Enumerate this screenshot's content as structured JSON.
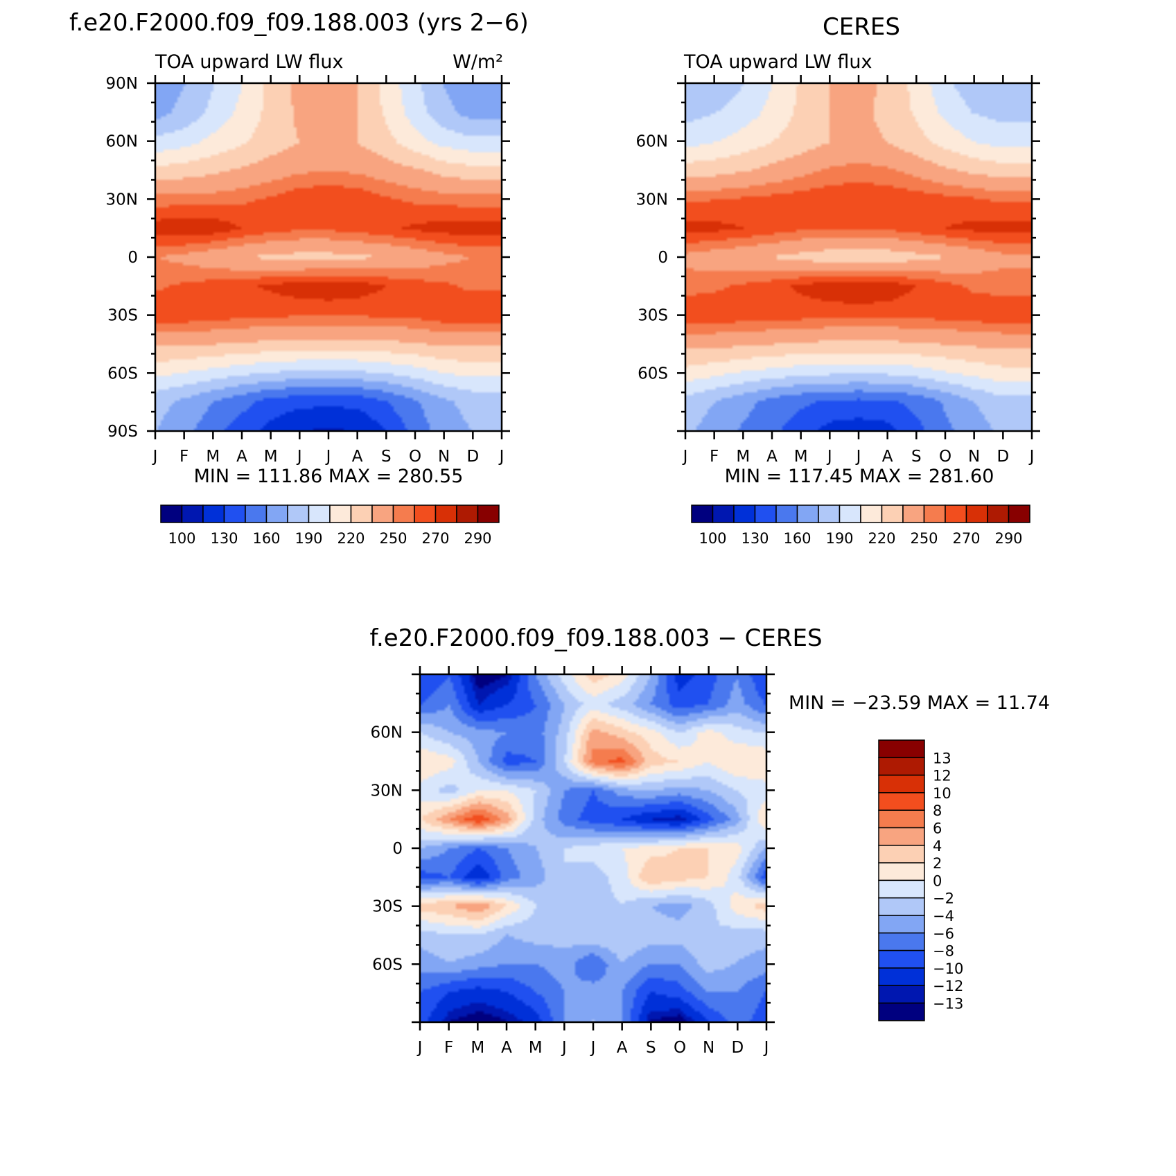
{
  "colors": {
    "fill_scale": [
      "#00007f",
      "#0017b0",
      "#0030d8",
      "#2050f0",
      "#4a78ee",
      "#82a6f4",
      "#b0c8f8",
      "#d8e6fc",
      "#fdeada",
      "#fcd0b4",
      "#f8a480",
      "#f57c4e",
      "#f24e1e",
      "#d83006",
      "#ae1a02",
      "#880000"
    ],
    "diff_scale": [
      "#00007f",
      "#0017b0",
      "#0030d8",
      "#2050f0",
      "#4a78ee",
      "#82a6f4",
      "#b0c8f8",
      "#d8e6fc",
      "#fdeada",
      "#fcd0b4",
      "#f8a480",
      "#f57c4e",
      "#f24e1e",
      "#d83006",
      "#ae1a02",
      "#880000"
    ]
  },
  "panels": {
    "model": {
      "title": "f.e20.F2000.f09_f09.188.003 (yrs 2−6)",
      "left_label": "TOA upward LW flux",
      "right_label": "W/m²",
      "stats": "MIN = 111.86 MAX = 280.55",
      "yticks": [
        "90N",
        "60N",
        "30N",
        "0",
        "30S",
        "60S",
        "90S"
      ]
    },
    "obs": {
      "title": "CERES",
      "left_label": "TOA upward LW flux",
      "stats": "MIN = 117.45 MAX = 281.60",
      "yticks": [
        "60N",
        "30N",
        "0",
        "30S",
        "60S"
      ]
    },
    "diff": {
      "title": "f.e20.F2000.f09_f09.188.003 − CERES",
      "stats": "MIN = −23.59 MAX =   11.74",
      "yticks": [
        "60N",
        "30N",
        "0",
        "30S",
        "60S"
      ]
    }
  },
  "months": [
    "J",
    "F",
    "M",
    "A",
    "M",
    "J",
    "J",
    "A",
    "S",
    "O",
    "N",
    "D",
    "J"
  ],
  "colorbar_top_labels": [
    "100",
    "130",
    "160",
    "190",
    "220",
    "250",
    "270",
    "290"
  ],
  "colorbar_diff_labels": [
    "13",
    "12",
    "10",
    "8",
    "6",
    "4",
    "2",
    "0",
    "−2",
    "−4",
    "−6",
    "−8",
    "−10",
    "−12",
    "−13"
  ],
  "chart_data": [
    {
      "type": "heatmap",
      "title": "f.e20.F2000.f09_f09.188.003 (yrs 2−6)",
      "subtitle": "TOA upward LW flux",
      "units": "W/m²",
      "x": [
        "J",
        "F",
        "M",
        "A",
        "M",
        "J",
        "J",
        "A",
        "S",
        "O",
        "N",
        "D",
        "J"
      ],
      "y": [
        90,
        75,
        60,
        45,
        30,
        15,
        0,
        -15,
        -30,
        -45,
        -60,
        -75,
        -90
      ],
      "ylim": [
        -90,
        90
      ],
      "levels": [
        100,
        115,
        130,
        145,
        160,
        175,
        190,
        205,
        220,
        235,
        250,
        260,
        270,
        280,
        290
      ],
      "values": [
        [
          165,
          175,
          190,
          205,
          225,
          240,
          245,
          235,
          215,
          195,
          175,
          165,
          165
        ],
        [
          170,
          180,
          195,
          210,
          225,
          238,
          243,
          235,
          218,
          198,
          180,
          170,
          170
        ],
        [
          195,
          200,
          210,
          218,
          228,
          235,
          240,
          235,
          225,
          212,
          200,
          195,
          195
        ],
        [
          225,
          228,
          232,
          238,
          243,
          248,
          250,
          248,
          243,
          238,
          230,
          226,
          225
        ],
        [
          255,
          255,
          256,
          258,
          262,
          268,
          270,
          268,
          262,
          258,
          256,
          255,
          255
        ],
        [
          276,
          279,
          277,
          270,
          265,
          262,
          262,
          265,
          268,
          272,
          275,
          276,
          276
        ],
        [
          250,
          246,
          240,
          235,
          232,
          230,
          230,
          232,
          235,
          240,
          246,
          250,
          250
        ],
        [
          258,
          262,
          265,
          268,
          272,
          276,
          278,
          276,
          270,
          265,
          262,
          258,
          258
        ],
        [
          268,
          268,
          266,
          264,
          262,
          262,
          262,
          262,
          262,
          264,
          268,
          268,
          268
        ],
        [
          238,
          238,
          236,
          234,
          232,
          230,
          230,
          230,
          232,
          234,
          238,
          238,
          238
        ],
        [
          210,
          205,
          200,
          195,
          190,
          188,
          188,
          188,
          192,
          198,
          206,
          210,
          210
        ],
        [
          180,
          172,
          160,
          150,
          140,
          135,
          134,
          135,
          145,
          158,
          172,
          180,
          180
        ],
        [
          175,
          165,
          150,
          138,
          125,
          116,
          114,
          116,
          130,
          150,
          168,
          175,
          175
        ]
      ]
    },
    {
      "type": "heatmap",
      "title": "CERES",
      "subtitle": "TOA upward LW flux",
      "x": [
        "J",
        "F",
        "M",
        "A",
        "M",
        "J",
        "J",
        "A",
        "S",
        "O",
        "N",
        "D",
        "J"
      ],
      "y": [
        90,
        75,
        60,
        45,
        30,
        15,
        0,
        -15,
        -30,
        -45,
        -60,
        -75,
        -90
      ],
      "ylim": [
        -90,
        90
      ],
      "levels": [
        100,
        115,
        130,
        145,
        160,
        175,
        190,
        205,
        220,
        235,
        250,
        260,
        270,
        280,
        290
      ],
      "values": [
        [
          175,
          180,
          190,
          205,
          222,
          235,
          240,
          232,
          215,
          195,
          180,
          175,
          175
        ],
        [
          185,
          190,
          198,
          210,
          224,
          235,
          238,
          232,
          218,
          202,
          190,
          185,
          185
        ],
        [
          200,
          205,
          212,
          220,
          228,
          235,
          238,
          235,
          226,
          215,
          205,
          200,
          200
        ],
        [
          228,
          230,
          234,
          240,
          246,
          252,
          255,
          252,
          246,
          238,
          232,
          228,
          228
        ],
        [
          258,
          260,
          262,
          264,
          266,
          268,
          268,
          268,
          266,
          264,
          262,
          258,
          258
        ],
        [
          275,
          273,
          270,
          266,
          262,
          260,
          260,
          262,
          266,
          270,
          273,
          275,
          275
        ],
        [
          246,
          242,
          238,
          234,
          230,
          226,
          225,
          226,
          230,
          234,
          240,
          246,
          246
        ],
        [
          256,
          258,
          262,
          266,
          272,
          277,
          280,
          277,
          270,
          264,
          258,
          256,
          256
        ],
        [
          268,
          268,
          267,
          266,
          265,
          264,
          264,
          264,
          264,
          265,
          267,
          268,
          268
        ],
        [
          240,
          240,
          238,
          236,
          234,
          232,
          232,
          232,
          234,
          236,
          238,
          240,
          240
        ],
        [
          215,
          210,
          204,
          200,
          196,
          194,
          194,
          194,
          198,
          204,
          210,
          215,
          215
        ],
        [
          185,
          175,
          165,
          155,
          148,
          143,
          142,
          143,
          150,
          162,
          175,
          185,
          185
        ],
        [
          178,
          168,
          158,
          148,
          138,
          125,
          122,
          125,
          140,
          156,
          168,
          178,
          178
        ]
      ]
    },
    {
      "type": "heatmap",
      "title": "f.e20.F2000.f09_f09.188.003 − CERES",
      "x": [
        "J",
        "F",
        "M",
        "A",
        "M",
        "J",
        "J",
        "A",
        "S",
        "O",
        "N",
        "D",
        "J"
      ],
      "y": [
        90,
        75,
        60,
        45,
        30,
        15,
        0,
        -15,
        -30,
        -45,
        -60,
        -75,
        -90
      ],
      "ylim": [
        -90,
        90
      ],
      "levels": [
        -13,
        -12,
        -10,
        -8,
        -6,
        -4,
        -2,
        0,
        2,
        4,
        6,
        8,
        10,
        12,
        13
      ],
      "values": [
        [
          -10,
          -8,
          -14,
          -13,
          -6,
          -1,
          3,
          1,
          -4,
          -11,
          -9,
          -6,
          -10
        ],
        [
          -8,
          -6,
          -12,
          -10,
          -8,
          -4,
          -1,
          -3,
          -6,
          -9,
          -8,
          -5,
          -8
        ],
        [
          -2,
          -4,
          -5,
          -6,
          -7,
          -3,
          5,
          3,
          1,
          -2,
          1,
          -1,
          -2
        ],
        [
          2,
          1,
          -4,
          -9,
          -8,
          -2,
          7,
          9,
          3,
          2,
          0,
          2,
          2
        ],
        [
          -1,
          -3,
          0,
          0,
          -2,
          -6,
          -8,
          -5,
          -4,
          -5,
          -4,
          -2,
          -1
        ],
        [
          2,
          6,
          10,
          5,
          -3,
          -7,
          -9,
          -10,
          -12,
          -13,
          -9,
          -5,
          2
        ],
        [
          -4,
          -6,
          -8,
          -6,
          -4,
          -2,
          -1,
          0,
          1,
          2,
          2,
          1,
          -4
        ],
        [
          -9,
          -8,
          -12,
          -7,
          -5,
          -2,
          -3,
          -1,
          4,
          3,
          2,
          -1,
          -9
        ],
        [
          3,
          4,
          6,
          2,
          -2,
          -3,
          -3,
          -2,
          -4,
          -5,
          -3,
          1,
          3
        ],
        [
          -3,
          -2,
          -2,
          -4,
          -3,
          -3,
          -2,
          -2,
          -3,
          -3,
          -2,
          -3,
          -3
        ],
        [
          -5,
          -4,
          -5,
          -6,
          -6,
          -5,
          -8,
          -4,
          -6,
          -6,
          -3,
          -4,
          -5
        ],
        [
          -8,
          -10,
          -11,
          -10,
          -8,
          -6,
          -5,
          -6,
          -10,
          -9,
          -6,
          -6,
          -8
        ],
        [
          -9,
          -13,
          -14,
          -13,
          -11,
          -6,
          -4,
          -6,
          -13,
          -14,
          -10,
          -7,
          -9
        ]
      ]
    }
  ]
}
